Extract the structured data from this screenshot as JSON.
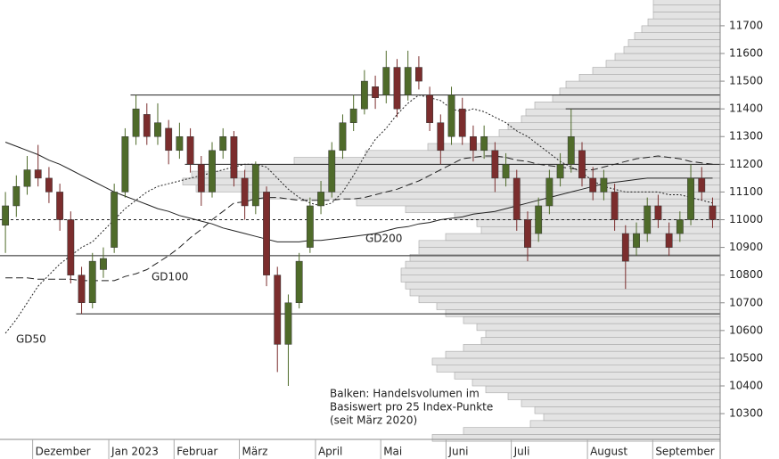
{
  "chart_data": {
    "type": "candlestick",
    "categories": [
      null,
      null,
      null,
      "Dezember",
      null,
      null,
      null,
      null,
      null,
      null,
      "Jan 2023",
      null,
      null,
      null,
      null,
      null,
      "Februar",
      null,
      null,
      null,
      null,
      null,
      "März",
      null,
      null,
      null,
      null,
      null,
      null,
      "April",
      null,
      null,
      null,
      null,
      null,
      "Mai",
      null,
      null,
      null,
      null,
      null,
      "Juni",
      null,
      null,
      null,
      null,
      null,
      "Juli",
      null,
      null,
      null,
      null,
      null,
      null,
      "August",
      null,
      null,
      null,
      null,
      null,
      "September",
      null,
      null,
      null,
      null,
      null
    ],
    "open": [
      10980,
      11050,
      11120,
      11180,
      11150,
      11100,
      11000,
      10800,
      10700,
      10820,
      10900,
      11100,
      11300,
      11380,
      11300,
      11330,
      11250,
      11300,
      11200,
      11100,
      11250,
      11300,
      11150,
      11050,
      11100,
      10800,
      10550,
      10700,
      10900,
      11050,
      11100,
      11250,
      11350,
      11400,
      11480,
      11450,
      11550,
      11450,
      11550,
      11450,
      11350,
      11300,
      11400,
      11300,
      11250,
      11250,
      11150,
      11150,
      11000,
      10950,
      11050,
      11150,
      11200,
      11250,
      11150,
      11100,
      11100,
      10950,
      10900,
      10950,
      11050,
      10950,
      10950,
      11000,
      11150,
      11050
    ],
    "high": [
      11100,
      11160,
      11230,
      11270,
      11190,
      11130,
      11030,
      10830,
      10880,
      10900,
      11130,
      11330,
      11450,
      11420,
      11420,
      11360,
      11350,
      11330,
      11230,
      11280,
      11330,
      11320,
      11180,
      11210,
      11120,
      10830,
      10730,
      10880,
      11080,
      11140,
      11280,
      11380,
      11450,
      11540,
      11520,
      11610,
      11580,
      11610,
      11590,
      11480,
      11380,
      11480,
      11440,
      11340,
      11340,
      11280,
      11240,
      11180,
      11030,
      11080,
      11180,
      11240,
      11400,
      11280,
      11190,
      11180,
      11130,
      10980,
      10990,
      11080,
      11090,
      10990,
      11030,
      11200,
      11190,
      11080
    ],
    "low": [
      10880,
      11010,
      11090,
      11120,
      11060,
      10960,
      10770,
      10660,
      10680,
      10790,
      10880,
      11080,
      11270,
      11270,
      11270,
      11200,
      11220,
      11170,
      11050,
      11080,
      11220,
      11120,
      11000,
      11020,
      10760,
      10450,
      10400,
      10680,
      10880,
      11020,
      11080,
      11220,
      11320,
      11380,
      11400,
      11420,
      11370,
      11430,
      11470,
      11320,
      11200,
      11270,
      11270,
      11210,
      11220,
      11100,
      11120,
      10960,
      10850,
      10920,
      11020,
      11120,
      11170,
      11120,
      11070,
      11070,
      10960,
      10750,
      10870,
      10920,
      10970,
      10870,
      10920,
      10980,
      11070,
      10970
    ],
    "close": [
      11050,
      11120,
      11180,
      11150,
      11100,
      11000,
      10800,
      10700,
      10850,
      10860,
      11100,
      11300,
      11400,
      11300,
      11350,
      11250,
      11300,
      11200,
      11100,
      11250,
      11300,
      11150,
      11050,
      11200,
      10800,
      10550,
      10700,
      10850,
      11050,
      11100,
      11250,
      11350,
      11400,
      11500,
      11440,
      11550,
      11400,
      11550,
      11500,
      11350,
      11250,
      11450,
      11300,
      11250,
      11300,
      11150,
      11200,
      11000,
      10900,
      11050,
      11150,
      11200,
      11300,
      11150,
      11100,
      11150,
      11000,
      10850,
      10950,
      11050,
      11000,
      10900,
      11000,
      11150,
      11100,
      11000
    ],
    "up_color": "#4f6b2a",
    "down_color": "#7b2d2d",
    "series": [
      {
        "name": "GD50",
        "style": "dotted",
        "color": "#222",
        "values": [
          10590,
          10640,
          10700,
          10760,
          10800,
          10840,
          10870,
          10900,
          10920,
          10960,
          11000,
          11040,
          11070,
          11100,
          11120,
          11130,
          11140,
          11150,
          11160,
          11170,
          11180,
          11190,
          11200,
          11200,
          11190,
          11150,
          11110,
          11080,
          11060,
          11050,
          11060,
          11100,
          11160,
          11230,
          11290,
          11330,
          11380,
          11420,
          11450,
          11440,
          11430,
          11400,
          11390,
          11400,
          11390,
          11370,
          11350,
          11320,
          11300,
          11270,
          11240,
          11210,
          11190,
          11170,
          11140,
          11120,
          11110,
          11100,
          11100,
          11100,
          11100,
          11090,
          11090,
          11080,
          11070,
          11060
        ]
      },
      {
        "name": "GD100",
        "style": "dashed",
        "color": "#222",
        "values": [
          10790,
          10790,
          10790,
          10785,
          10785,
          10785,
          10785,
          10780,
          10780,
          10780,
          10780,
          10795,
          10805,
          10820,
          10845,
          10870,
          10900,
          10935,
          10965,
          11000,
          11030,
          11060,
          11065,
          11075,
          11080,
          11080,
          11075,
          11070,
          11070,
          11070,
          11070,
          11075,
          11075,
          11080,
          11090,
          11100,
          11110,
          11125,
          11140,
          11160,
          11180,
          11200,
          11220,
          11225,
          11230,
          11230,
          11225,
          11215,
          11210,
          11200,
          11195,
          11190,
          11185,
          11180,
          11180,
          11190,
          11200,
          11210,
          11220,
          11225,
          11230,
          11225,
          11220,
          11210,
          11205,
          11200
        ]
      },
      {
        "name": "GD200",
        "style": "solid",
        "color": "#222",
        "values": [
          11280,
          11265,
          11250,
          11235,
          11215,
          11200,
          11180,
          11160,
          11140,
          11120,
          11100,
          11085,
          11070,
          11055,
          11040,
          11030,
          11015,
          11005,
          10995,
          10985,
          10970,
          10960,
          10950,
          10940,
          10930,
          10920,
          10920,
          10920,
          10925,
          10925,
          10930,
          10935,
          10940,
          10945,
          10950,
          10960,
          10970,
          10975,
          10985,
          10990,
          11000,
          11005,
          11010,
          11020,
          11025,
          11030,
          11040,
          11050,
          11060,
          11070,
          11080,
          11090,
          11100,
          11110,
          11120,
          11130,
          11135,
          11140,
          11145,
          11150,
          11150,
          11150,
          11150,
          11150,
          11150,
          11150
        ]
      }
    ],
    "levels": [
      {
        "value": 11450,
        "from": 12,
        "style": "solid"
      },
      {
        "value": 11400,
        "from": 52,
        "style": "solid"
      },
      {
        "value": 11200,
        "from": 17,
        "style": "solid"
      },
      {
        "value": 11000,
        "from": 0,
        "style": "dotted"
      },
      {
        "value": 10870,
        "from": 0,
        "style": "solid"
      },
      {
        "value": 10660,
        "from": 7,
        "style": "solid"
      }
    ],
    "profile": {
      "bins": [
        10200,
        10225,
        10250,
        10275,
        10300,
        10325,
        10350,
        10375,
        10400,
        10425,
        10450,
        10475,
        10500,
        10525,
        10550,
        10575,
        10600,
        10625,
        10650,
        10675,
        10700,
        10725,
        10750,
        10775,
        10800,
        10825,
        10850,
        10875,
        10900,
        10925,
        10950,
        10975,
        11000,
        11025,
        11050,
        11075,
        11100,
        11125,
        11150,
        11175,
        11200,
        11225,
        11250,
        11275,
        11300,
        11325,
        11350,
        11375,
        11400,
        11425,
        11450,
        11475,
        11500,
        11525,
        11550,
        11575,
        11600,
        11625,
        11650,
        11675,
        11700,
        11725,
        11750,
        11775,
        11800
      ],
      "counts": [
        323,
        288,
        213,
        198,
        208,
        223,
        238,
        263,
        278,
        298,
        318,
        323,
        308,
        288,
        268,
        263,
        273,
        288,
        308,
        318,
        338,
        348,
        353,
        358,
        358,
        353,
        348,
        338,
        338,
        308,
        268,
        273,
        298,
        353,
        408,
        528,
        588,
        603,
        593,
        533,
        478,
        398,
        328,
        268,
        248,
        238,
        223,
        218,
        208,
        188,
        180,
        173,
        158,
        143,
        128,
        118,
        108,
        103,
        96,
        88,
        81,
        75,
        75,
        75
      ],
      "xlim": [
        0,
        808
      ],
      "color": "#e3e3e3"
    },
    "annotation": [
      "Balken: Handelsvolumen im",
      "Basiswert pro 25 Index-Punkte",
      "(seit März 2020)"
    ],
    "ylim": [
      10207,
      11793
    ],
    "yticks": [
      10300,
      10400,
      10500,
      10600,
      10700,
      10800,
      10900,
      11000,
      11100,
      11200,
      11300,
      11400,
      11500,
      11600,
      11700
    ]
  }
}
